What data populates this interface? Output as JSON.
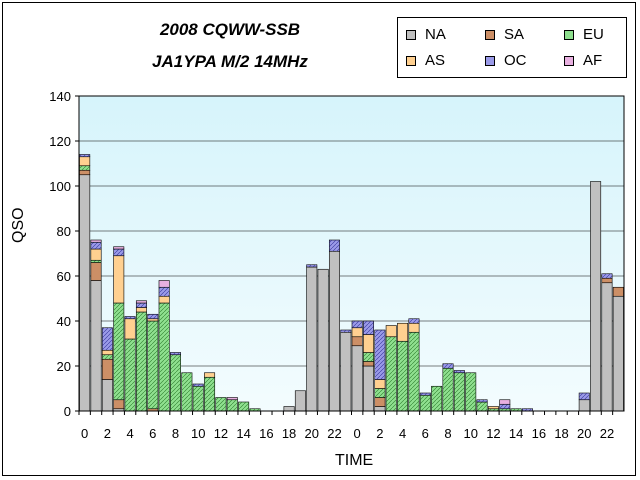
{
  "chart_data": {
    "type": "bar",
    "stacked": true,
    "title": "2008 CQWW-SSB",
    "subtitle": "JA1YPA M/2   14MHz",
    "xlabel": "TIME",
    "ylabel": "QSO",
    "ylim": [
      0,
      140
    ],
    "yticks": [
      0,
      20,
      40,
      60,
      80,
      100,
      120,
      140
    ],
    "grid": true,
    "legend_position": "top-right",
    "categories": [
      "0",
      "1",
      "2",
      "3",
      "4",
      "5",
      "6",
      "7",
      "8",
      "9",
      "10",
      "11",
      "12",
      "13",
      "14",
      "15",
      "16",
      "17",
      "18",
      "19",
      "20",
      "21",
      "22",
      "23",
      "0",
      "1",
      "2",
      "3",
      "4",
      "5",
      "6",
      "7",
      "8",
      "9",
      "10",
      "11",
      "12",
      "13",
      "14",
      "15",
      "16",
      "17",
      "18",
      "19",
      "20",
      "21",
      "22",
      "23"
    ],
    "tick_labels": [
      "0",
      "",
      "2",
      "",
      "4",
      "",
      "6",
      "",
      "8",
      "",
      "10",
      "",
      "12",
      "",
      "14",
      "",
      "16",
      "",
      "18",
      "",
      "20",
      "",
      "22",
      "",
      "0",
      "",
      "2",
      "",
      "4",
      "",
      "6",
      "",
      "8",
      "",
      "10",
      "",
      "12",
      "",
      "14",
      "",
      "16",
      "",
      "18",
      "",
      "20",
      "",
      "22",
      ""
    ],
    "series": [
      {
        "name": "NA",
        "color": "#c0c0c0",
        "values": [
          105,
          58,
          14,
          1,
          0,
          0,
          0,
          0,
          0,
          0,
          0,
          0,
          0,
          0,
          0,
          0,
          0,
          0,
          2,
          9,
          64,
          63,
          71,
          35,
          29,
          20,
          2,
          0,
          0,
          0,
          0,
          0,
          0,
          0,
          0,
          0,
          0,
          0,
          0,
          0,
          0,
          0,
          0,
          0,
          5,
          102,
          57,
          51
        ]
      },
      {
        "name": "SA",
        "color": "#cc8f66",
        "values": [
          2,
          8,
          9,
          4,
          0,
          0,
          1,
          0,
          0,
          0,
          0,
          0,
          0,
          0,
          0,
          0,
          0,
          0,
          0,
          0,
          0,
          0,
          0,
          0,
          4,
          2,
          4,
          0,
          0,
          0,
          0,
          0,
          0,
          0,
          0,
          0,
          0,
          0,
          0,
          0,
          0,
          0,
          0,
          0,
          0,
          0,
          2,
          4
        ]
      },
      {
        "name": "EU",
        "color": "#8fe08f",
        "values": [
          2,
          1,
          2,
          43,
          32,
          44,
          39,
          48,
          25,
          17,
          11,
          15,
          6,
          5,
          4,
          1,
          0,
          0,
          0,
          0,
          0,
          0,
          0,
          0,
          0,
          4,
          4,
          33,
          31,
          35,
          7,
          11,
          19,
          17,
          17,
          4,
          1,
          1,
          1,
          0,
          0,
          0,
          0,
          0,
          0,
          0,
          0,
          0
        ]
      },
      {
        "name": "AS",
        "color": "#ffd090",
        "values": [
          4,
          5,
          2,
          21,
          9,
          2,
          1,
          3,
          0,
          0,
          0,
          2,
          0,
          0,
          0,
          0,
          0,
          0,
          0,
          0,
          0,
          0,
          0,
          0,
          4,
          8,
          4,
          5,
          8,
          4,
          0,
          0,
          0,
          0,
          0,
          0,
          1,
          0,
          0,
          0,
          0,
          0,
          0,
          0,
          0,
          0,
          0,
          0
        ]
      },
      {
        "name": "OC",
        "color": "#9a9ae8",
        "values": [
          1,
          3,
          10,
          3,
          1,
          2,
          2,
          4,
          1,
          0,
          1,
          0,
          0,
          0,
          0,
          0,
          0,
          0,
          0,
          0,
          1,
          0,
          5,
          1,
          3,
          6,
          22,
          0,
          0,
          2,
          1,
          0,
          2,
          1,
          0,
          1,
          0,
          2,
          0,
          1,
          0,
          0,
          0,
          0,
          3,
          0,
          2,
          0
        ]
      },
      {
        "name": "AF",
        "color": "#e8b0e0",
        "values": [
          0,
          1,
          0,
          1,
          0,
          1,
          0,
          3,
          0,
          0,
          0,
          0,
          0,
          1,
          0,
          0,
          0,
          0,
          0,
          0,
          0,
          0,
          0,
          0,
          0,
          0,
          0,
          0,
          0,
          0,
          0,
          0,
          0,
          0,
          0,
          0,
          0,
          2,
          0,
          0,
          0,
          0,
          0,
          0,
          0,
          0,
          0,
          0
        ]
      }
    ]
  }
}
